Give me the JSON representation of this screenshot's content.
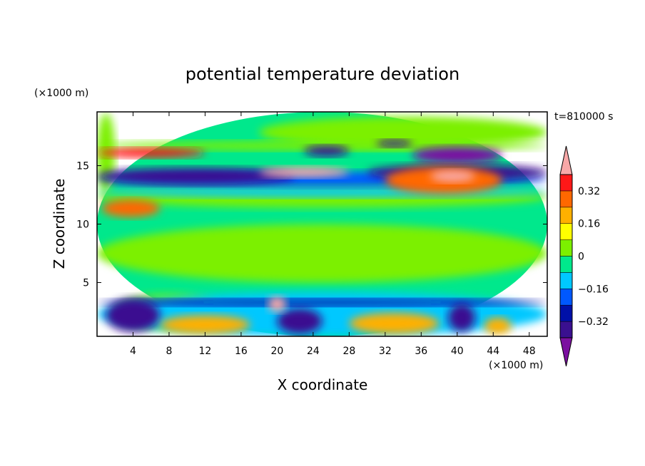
{
  "chart_data": {
    "type": "heatmap",
    "title": "potential temperature deviation",
    "time_label": "t=810000 s",
    "xlabel": "X coordinate",
    "ylabel": "Z coordinate",
    "x_unit": "(×1000 m)",
    "y_unit": "(×1000 m)",
    "xlim": [
      0,
      50
    ],
    "ylim": [
      0.4,
      19.6
    ],
    "x_ticks": [
      "4",
      "8",
      "12",
      "16",
      "20",
      "24",
      "28",
      "32",
      "36",
      "40",
      "44",
      "48"
    ],
    "y_ticks": [
      "5",
      "10",
      "15"
    ],
    "colorbar": {
      "labels": [
        "0.32",
        "0.16",
        "0",
        "−0.16",
        "−0.32"
      ],
      "levels": [
        -0.48,
        -0.4,
        -0.32,
        -0.24,
        -0.16,
        -0.08,
        0,
        0.08,
        0.16,
        0.24,
        0.32,
        0.4,
        0.48
      ],
      "colors": [
        "#7b10a0",
        "#3a1090",
        "#0010a8",
        "#0058ff",
        "#00c8ff",
        "#00e88c",
        "#7cf000",
        "#ffff00",
        "#ffb000",
        "#ff6800",
        "#ff1818",
        "#f8a8a8"
      ]
    },
    "regions": [
      {
        "x": [
          0,
          50
        ],
        "z": [
          0.4,
          19.6
        ],
        "value": 0
      },
      {
        "x": [
          0,
          50
        ],
        "z": [
          5,
          10
        ],
        "value": 0.05
      },
      {
        "x": [
          2,
          14
        ],
        "z": [
          1,
          4
        ],
        "value": 0.05
      },
      {
        "x": [
          18,
          50
        ],
        "z": [
          16.5,
          19.2
        ],
        "value": 0.05
      },
      {
        "x": [
          0,
          2
        ],
        "z": [
          12.5,
          19.5
        ],
        "value": 0.05
      },
      {
        "x": [
          0,
          50
        ],
        "z": [
          16.3,
          17.1
        ],
        "value": 0.05
      },
      {
        "x": [
          0,
          50
        ],
        "z": [
          11.4,
          13.3
        ],
        "value": 0.05
      },
      {
        "x": [
          0,
          50
        ],
        "z": [
          12.3,
          13.2
        ],
        "value": -0.1
      },
      {
        "x": [
          0,
          50
        ],
        "z": [
          13.2,
          14.5
        ],
        "value": -0.2
      },
      {
        "x": [
          0,
          22
        ],
        "z": [
          13.4,
          14.8
        ],
        "value": -0.36
      },
      {
        "x": [
          30,
          50
        ],
        "z": [
          13.7,
          15.1
        ],
        "value": -0.36
      },
      {
        "x": [
          0,
          12
        ],
        "z": [
          15.7,
          16.5
        ],
        "value": 0.35
      },
      {
        "x": [
          23,
          28
        ],
        "z": [
          15.8,
          16.7
        ],
        "value": -0.36
      },
      {
        "x": [
          35,
          45
        ],
        "z": [
          15.2,
          16.6
        ],
        "value": -0.4
      },
      {
        "x": [
          31,
          35
        ],
        "z": [
          16.6,
          17.2
        ],
        "value": -0.36
      },
      {
        "x": [
          18,
          28
        ],
        "z": [
          14.0,
          14.9
        ],
        "value": 0.42
      },
      {
        "x": [
          32,
          45
        ],
        "z": [
          12.6,
          14.9
        ],
        "value": 0.3
      },
      {
        "x": [
          37,
          42
        ],
        "z": [
          13.6,
          14.6
        ],
        "value": 0.42
      },
      {
        "x": [
          0.5,
          7
        ],
        "z": [
          10.6,
          12.1
        ],
        "value": 0.3
      },
      {
        "x": [
          0,
          50
        ],
        "z": [
          0.4,
          4.2
        ],
        "value": -0.1
      },
      {
        "x": [
          0,
          50
        ],
        "z": [
          3.0,
          3.6
        ],
        "value": -0.3
      },
      {
        "x": [
          1,
          7
        ],
        "z": [
          0.8,
          3.6
        ],
        "value": -0.36
      },
      {
        "x": [
          20,
          25
        ],
        "z": [
          0.6,
          2.8
        ],
        "value": -0.36
      },
      {
        "x": [
          39,
          42
        ],
        "z": [
          0.8,
          3.2
        ],
        "value": -0.36
      },
      {
        "x": [
          7,
          17
        ],
        "z": [
          0.6,
          2.2
        ],
        "value": 0.22
      },
      {
        "x": [
          28,
          38
        ],
        "z": [
          0.6,
          2.4
        ],
        "value": 0.2
      },
      {
        "x": [
          19,
          21
        ],
        "z": [
          2.5,
          3.8
        ],
        "value": 0.42
      },
      {
        "x": [
          43,
          46
        ],
        "z": [
          0.6,
          2.0
        ],
        "value": 0.2
      }
    ]
  }
}
